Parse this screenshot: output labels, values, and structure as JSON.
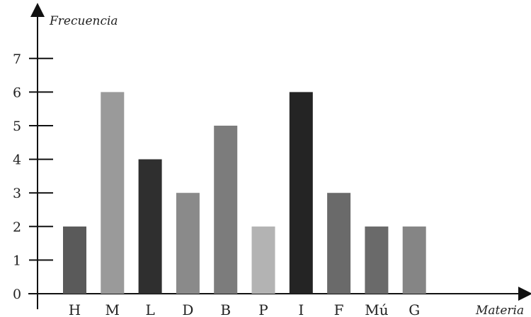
{
  "chart_data": {
    "type": "bar",
    "ylabel": "Frecuencia",
    "xlabel": "Materia",
    "categories": [
      "H",
      "M",
      "L",
      "D",
      "B",
      "P",
      "I",
      "F",
      "Mú",
      "G"
    ],
    "values": [
      2,
      6,
      4,
      3,
      5,
      2,
      6,
      3,
      2,
      2
    ],
    "colors": [
      "#5a5a5a",
      "#9a9a9a",
      "#2f2f2f",
      "#8a8a8a",
      "#7c7c7c",
      "#b3b3b3",
      "#242424",
      "#6a6a6a",
      "#6a6a6a",
      "#858585"
    ],
    "yticks": [
      0,
      1,
      2,
      3,
      4,
      5,
      6,
      7
    ],
    "ylim": [
      0,
      7
    ],
    "grid": false,
    "legend": "none"
  }
}
